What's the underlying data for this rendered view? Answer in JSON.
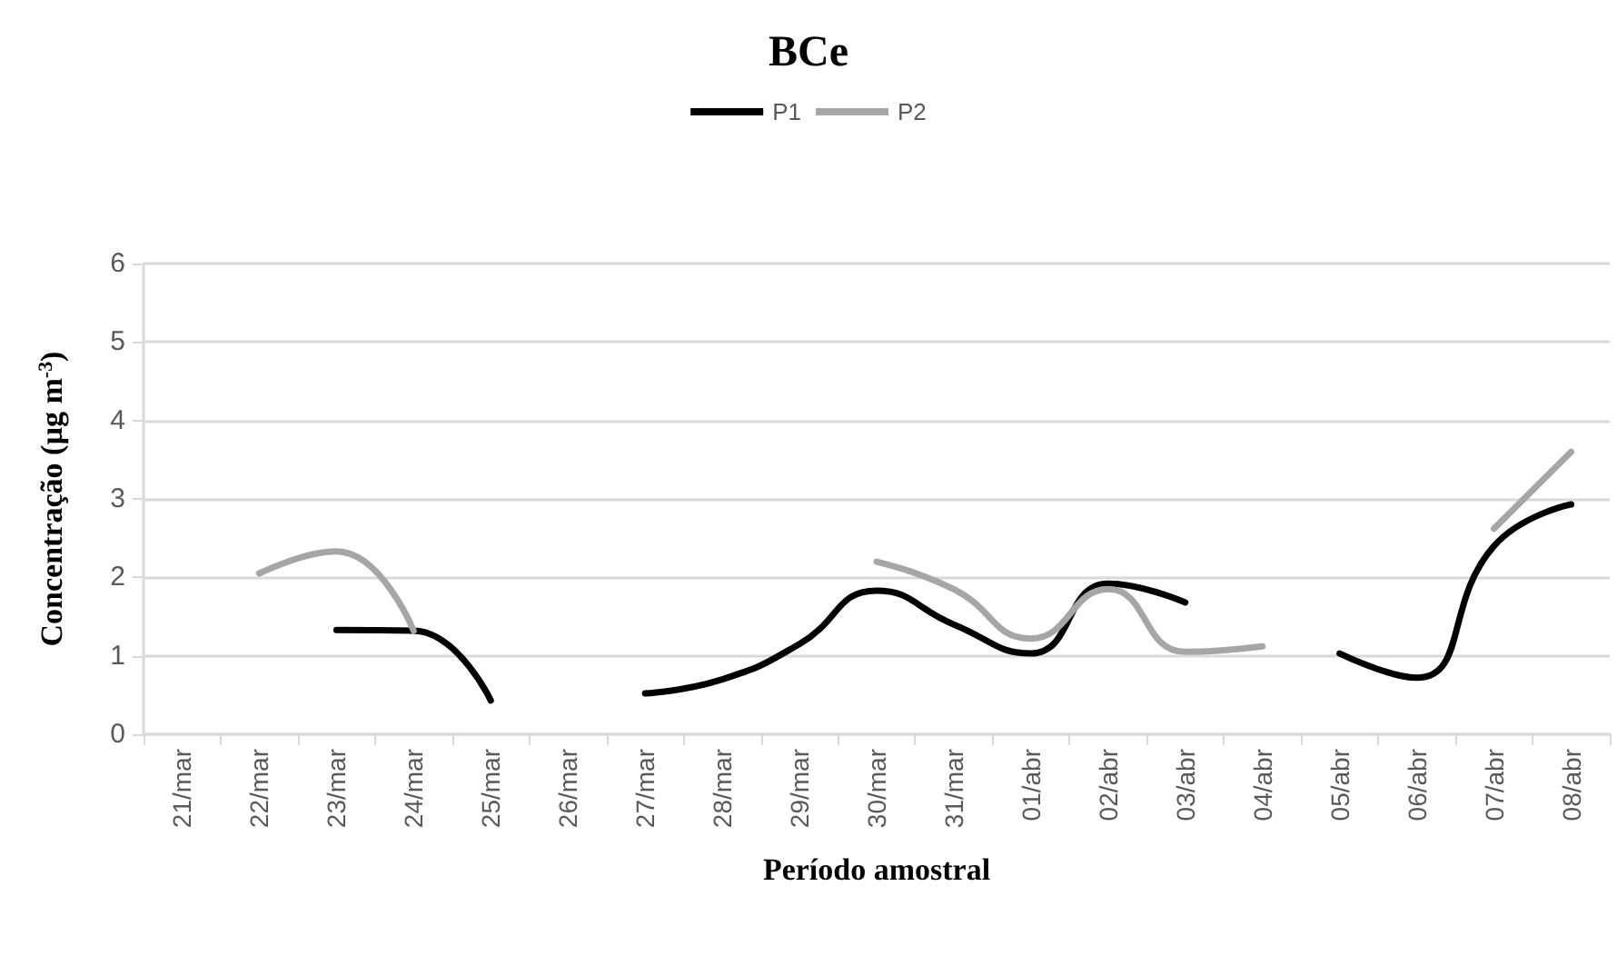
{
  "chart_data": {
    "type": "line",
    "title": "BCe",
    "xlabel": "Período amostral",
    "ylabel": "Concentração (µg m$^{-3}$)",
    "categories": [
      "21/mar",
      "22/mar",
      "23/mar",
      "24/mar",
      "25/mar",
      "26/mar",
      "27/mar",
      "28/mar",
      "29/mar",
      "30/mar",
      "31/mar",
      "01/abr",
      "02/abr",
      "03/abr",
      "04/abr",
      "05/abr",
      "06/abr",
      "07/abr",
      "08/abr"
    ],
    "series": [
      {
        "name": "P1",
        "color": "#000000",
        "values": [
          null,
          null,
          1.33,
          1.32,
          0.43,
          null,
          0.52,
          0.7,
          1.15,
          1.83,
          1.4,
          1.03,
          1.92,
          1.68,
          null,
          1.03,
          0.72,
          2.4,
          2.93
        ]
      },
      {
        "name": "P2",
        "color": "#a6a6a6",
        "values": [
          null,
          2.05,
          2.33,
          1.32,
          null,
          null,
          null,
          null,
          null,
          2.2,
          1.85,
          1.22,
          1.85,
          1.05,
          1.12,
          null,
          null,
          2.62,
          3.6
        ]
      }
    ],
    "ylim": [
      0,
      6
    ],
    "yticks": [
      0,
      1,
      2,
      3,
      4,
      5,
      6
    ],
    "grid": "y",
    "legend": "top",
    "marker": "none",
    "line_style": "solid"
  }
}
